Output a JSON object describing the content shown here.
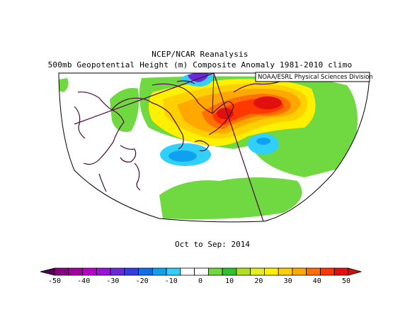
{
  "header": {
    "title_line1": "NCEP/NCAR Reanalysis",
    "title_line2": "500mb Geopotential Height (m) Composite Anomaly 1981-2010 climo",
    "credit": "NOAA/ESRL Physical Sciences Division"
  },
  "period": "Oct to Sep: 2014",
  "colorbar": {
    "tick_labels": [
      "-50",
      "-40",
      "-30",
      "-20",
      "-10",
      "0",
      "10",
      "20",
      "30",
      "40",
      "50"
    ],
    "colors": [
      "#8a0082",
      "#a3009f",
      "#b800c8",
      "#9a14d8",
      "#6a2ad8",
      "#3040e0",
      "#1070e8",
      "#10a0f0",
      "#30d0f8",
      "#ffffff",
      "#ffffff",
      "#70d840",
      "#30c030",
      "#b0e020",
      "#e6f020",
      "#fff000",
      "#ffd000",
      "#ffa800",
      "#ff7000",
      "#ff3800",
      "#e01010"
    ]
  }
}
